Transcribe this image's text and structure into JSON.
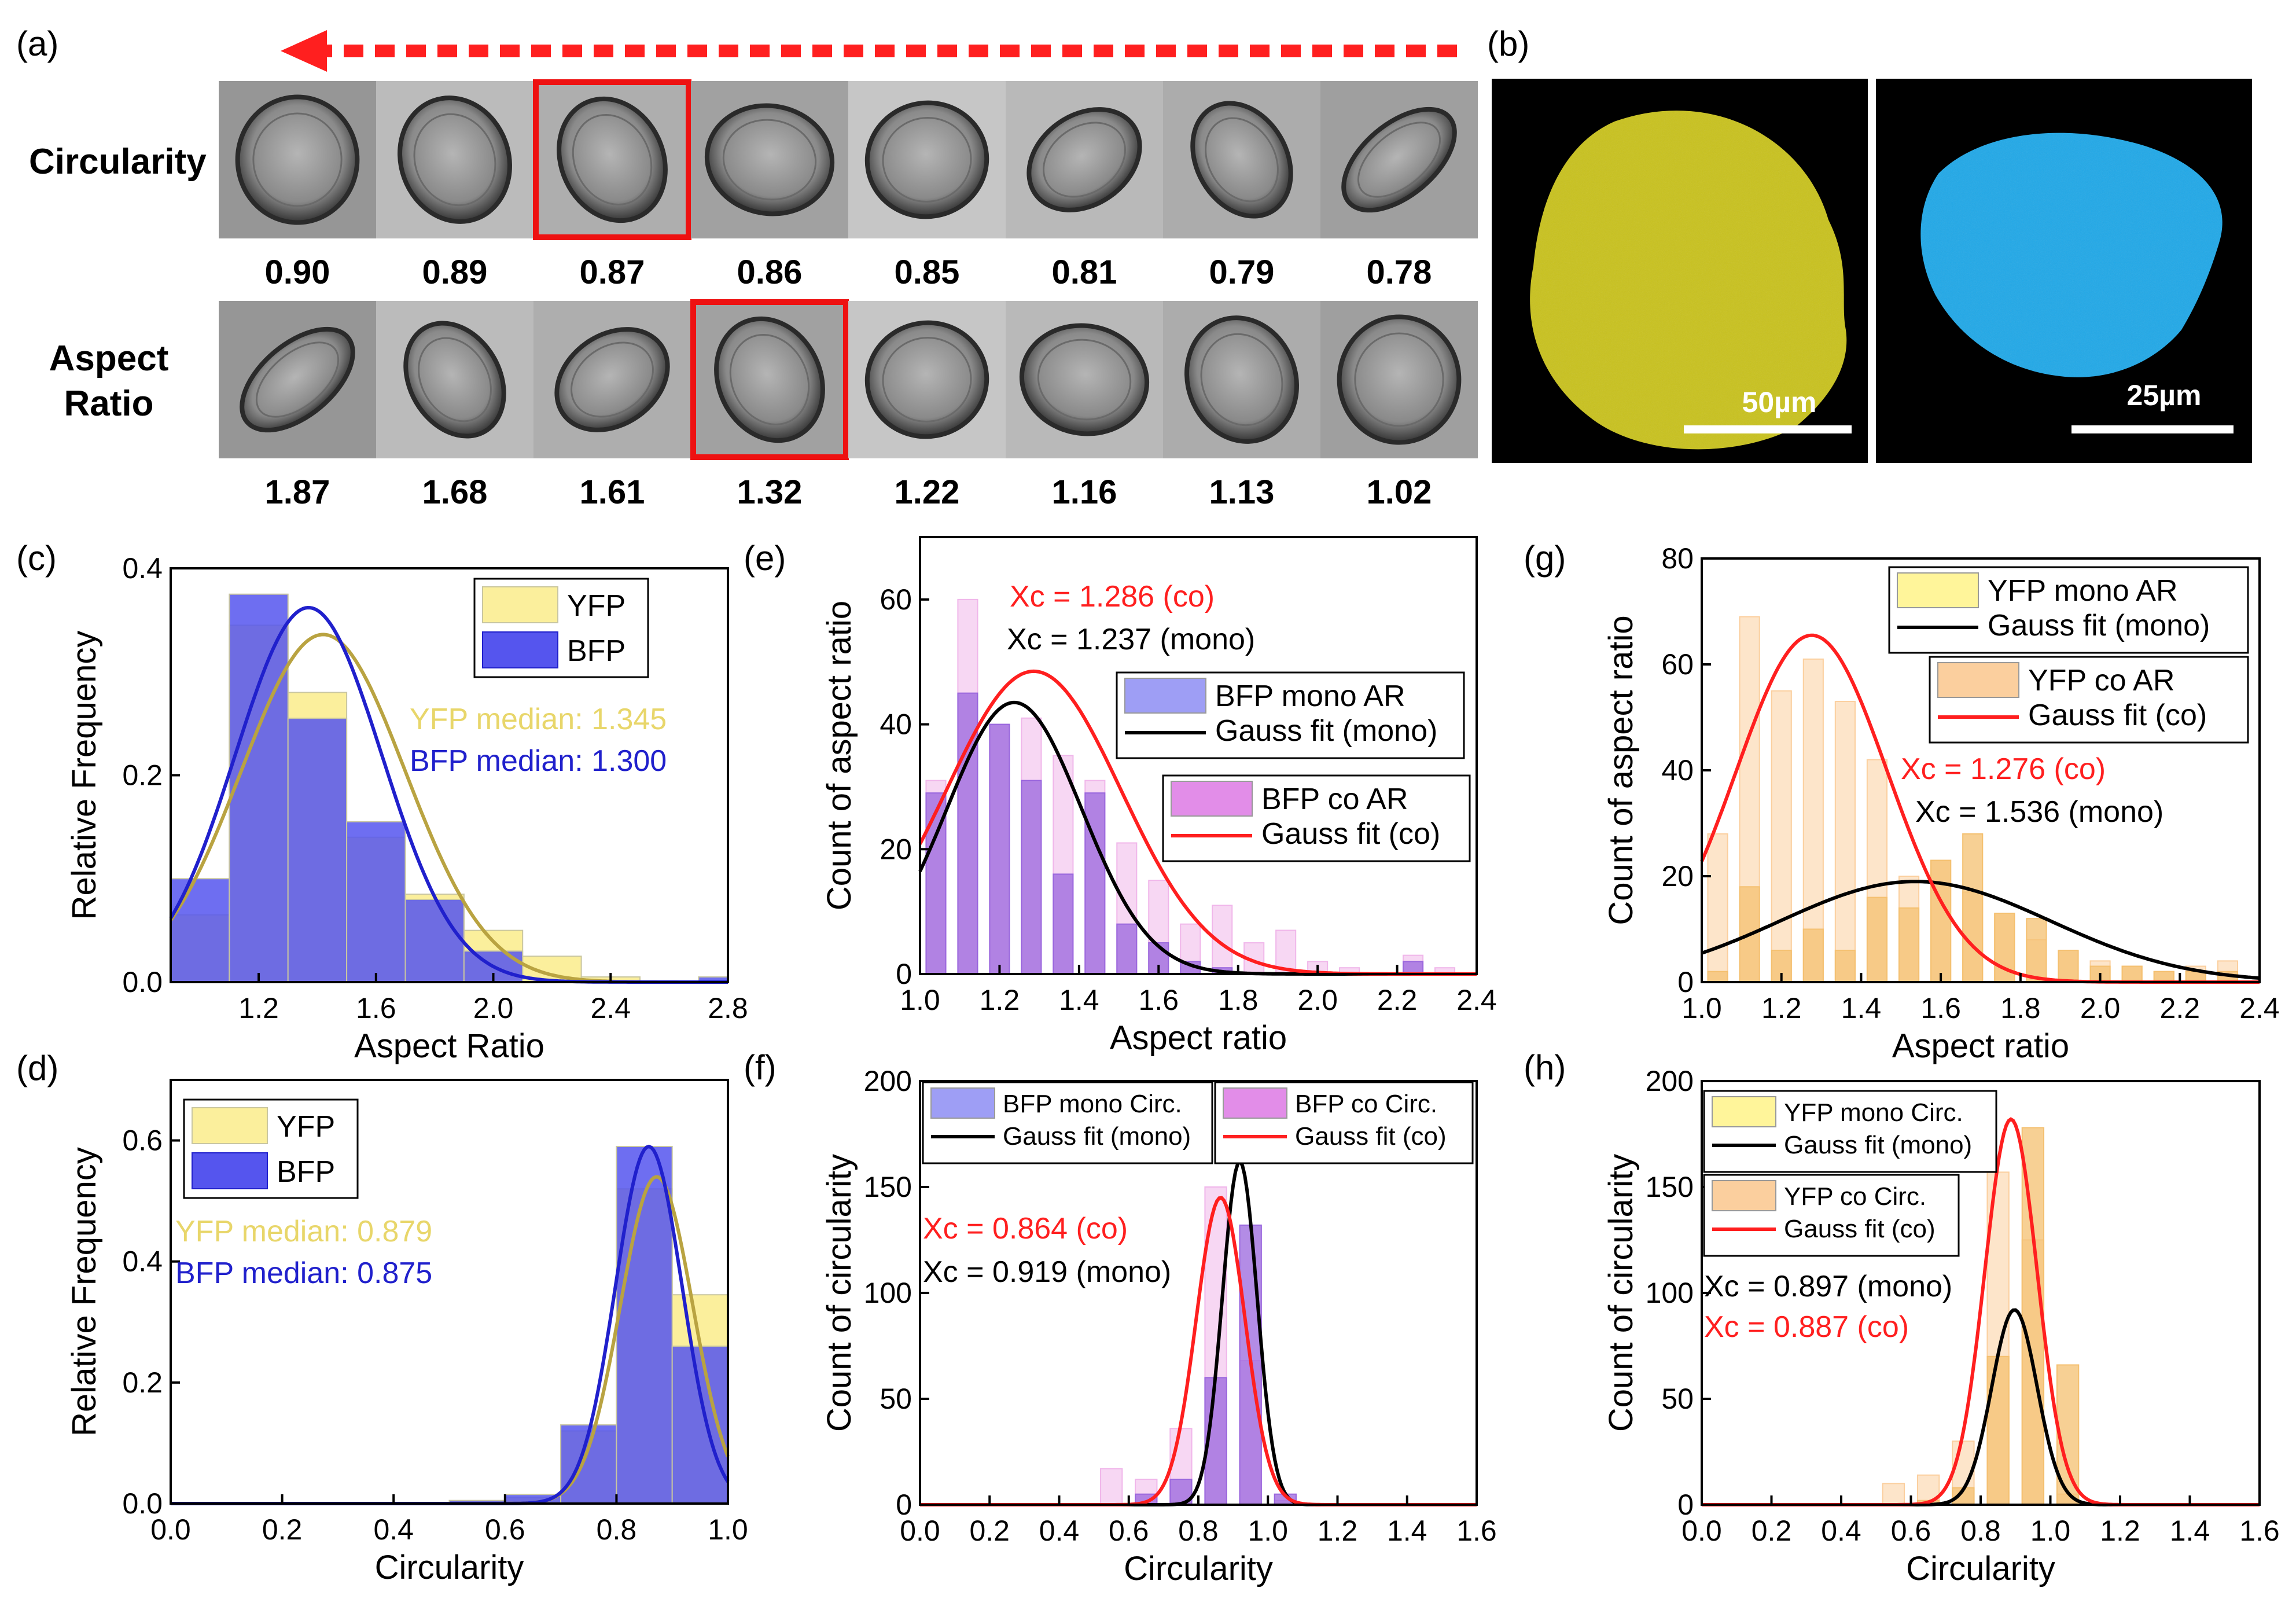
{
  "panel_a": {
    "label": "(a)",
    "row1_title": "Circularity",
    "row2_title_line1": "Aspect",
    "row2_title_line2": "Ratio",
    "row1_values": [
      "0.90",
      "0.89",
      "0.87",
      "0.86",
      "0.85",
      "0.81",
      "0.79",
      "0.78"
    ],
    "row2_values": [
      "1.87",
      "1.68",
      "1.61",
      "1.32",
      "1.22",
      "1.16",
      "1.13",
      "1.02"
    ],
    "row1_highlight_index": 2,
    "row2_highlight_index": 3
  },
  "panel_b": {
    "label": "(b)",
    "scale_left": "50µm",
    "scale_right": "25µm",
    "yellow_color": "#d4cc1e",
    "blue_color": "#1fa8e8"
  },
  "colors": {
    "yfp": "#fbef9c",
    "bfp": "#5555ee",
    "yfp_line": "#b9a341",
    "bfp_line": "#2020cc",
    "red": "#ff1f1f",
    "black": "#000000",
    "pink": "#f0b6ea",
    "purple": "#9966dd",
    "peach": "#fbcf9e",
    "orange": "#f4c070"
  },
  "chart_data": [
    {
      "id": "c",
      "label": "(c)",
      "type": "bar",
      "xlabel": "Aspect Ratio",
      "ylabel": "Relative Frequency",
      "xlim": [
        0.9,
        2.8
      ],
      "ylim": [
        0,
        0.4
      ],
      "xticks": [
        "1.2",
        "1.6",
        "2.0",
        "2.4",
        "2.8"
      ],
      "xtick_values": [
        1.2,
        1.6,
        2.0,
        2.4,
        2.8
      ],
      "yticks": [
        "0.0",
        "0.2",
        "0.4"
      ],
      "ytick_values": [
        0,
        0.2,
        0.4
      ],
      "bin_edges": [
        0.9,
        1.1,
        1.3,
        1.5,
        1.7,
        1.9,
        2.1,
        2.3,
        2.5,
        2.7,
        2.9
      ],
      "series": [
        {
          "name": "YFP",
          "values": [
            0.065,
            0.345,
            0.28,
            0.14,
            0.085,
            0.05,
            0.025,
            0.005,
            0.0,
            0.0
          ]
        },
        {
          "name": "BFP",
          "values": [
            0.1,
            0.375,
            0.255,
            0.155,
            0.08,
            0.03,
            0.0,
            0.0,
            0.0,
            0.005
          ]
        }
      ],
      "fits": [
        {
          "name": "YFP",
          "xc": 1.42,
          "w": 0.28,
          "a": 0.336
        },
        {
          "name": "BFP",
          "xc": 1.37,
          "w": 0.25,
          "a": 0.362
        }
      ],
      "legend": [
        "YFP",
        "BFP"
      ],
      "annotations": [
        "YFP median: 1.345",
        "BFP median: 1.300"
      ]
    },
    {
      "id": "d",
      "label": "(d)",
      "type": "bar",
      "xlabel": "Circularity",
      "ylabel": "Relative Frequency",
      "xlim": [
        0.0,
        1.0
      ],
      "ylim": [
        0,
        0.7
      ],
      "xticks": [
        "0.0",
        "0.2",
        "0.4",
        "0.6",
        "0.8",
        "1.0"
      ],
      "xtick_values": [
        0,
        0.2,
        0.4,
        0.6,
        0.8,
        1.0
      ],
      "yticks": [
        "0.0",
        "0.2",
        "0.4",
        "0.6"
      ],
      "ytick_values": [
        0,
        0.2,
        0.4,
        0.6
      ],
      "bin_edges": [
        0.5,
        0.6,
        0.7,
        0.8,
        0.9,
        1.0
      ],
      "series": [
        {
          "name": "YFP",
          "values": [
            0.005,
            0.01,
            0.12,
            0.52,
            0.345
          ]
        },
        {
          "name": "BFP",
          "values": [
            0.005,
            0.015,
            0.13,
            0.59,
            0.26
          ]
        }
      ],
      "fits": [
        {
          "name": "YFP",
          "xc": 0.872,
          "w": 0.065,
          "a": 0.54
        },
        {
          "name": "BFP",
          "xc": 0.858,
          "w": 0.06,
          "a": 0.59
        }
      ],
      "legend": [
        "YFP",
        "BFP"
      ],
      "annotations": [
        "YFP median: 0.879",
        "BFP median: 0.875"
      ]
    },
    {
      "id": "e",
      "label": "(e)",
      "type": "bar",
      "xlabel": "Aspect ratio",
      "ylabel": "Count of aspect ratio",
      "xlim": [
        1.0,
        2.4
      ],
      "ylim": [
        0,
        70
      ],
      "xticks": [
        "1.0",
        "1.2",
        "1.4",
        "1.6",
        "1.8",
        "2.0",
        "2.2",
        "2.4"
      ],
      "xtick_values": [
        1.0,
        1.2,
        1.4,
        1.6,
        1.8,
        2.0,
        2.2,
        2.4
      ],
      "yticks": [
        "0",
        "20",
        "40",
        "60"
      ],
      "ytick_values": [
        0,
        20,
        40,
        60
      ],
      "bin_centers": [
        1.04,
        1.12,
        1.2,
        1.28,
        1.36,
        1.44,
        1.52,
        1.6,
        1.68,
        1.76,
        1.84,
        1.92,
        2.0,
        2.08,
        2.16,
        2.24,
        2.32
      ],
      "series": [
        {
          "name": "BFP co AR",
          "values": [
            31,
            60,
            40,
            41,
            35,
            31,
            21,
            15,
            8,
            11,
            5,
            7,
            2,
            1,
            0,
            3,
            1
          ]
        },
        {
          "name": "BFP mono AR",
          "values": [
            29,
            45,
            40,
            31,
            16,
            29,
            8,
            5,
            2,
            1,
            0,
            0,
            0,
            0,
            0,
            2,
            0
          ]
        }
      ],
      "fits": [
        {
          "name": "Gauss fit (mono)",
          "xc": 1.237,
          "w": 0.17,
          "a": 43.5
        },
        {
          "name": "Gauss fit (co)",
          "xc": 1.286,
          "w": 0.22,
          "a": 48.5
        }
      ],
      "legend": [
        "BFP mono AR",
        "Gauss fit (mono)",
        "BFP co AR",
        "Gauss fit (co)"
      ],
      "annotations": [
        "Xc = 1.286 (co)",
        "Xc = 1.237 (mono)"
      ]
    },
    {
      "id": "f",
      "label": "(f)",
      "type": "bar",
      "xlabel": "Circularity",
      "ylabel": "Count of circularity",
      "xlim": [
        0.0,
        1.6
      ],
      "ylim": [
        0,
        200
      ],
      "xticks": [
        "0.0",
        "0.2",
        "0.4",
        "0.6",
        "0.8",
        "1.0",
        "1.2",
        "1.4",
        "1.6"
      ],
      "xtick_values": [
        0,
        0.2,
        0.4,
        0.6,
        0.8,
        1.0,
        1.2,
        1.4,
        1.6
      ],
      "yticks": [
        "0",
        "50",
        "100",
        "150",
        "200"
      ],
      "ytick_values": [
        0,
        50,
        100,
        150,
        200
      ],
      "bin_centers": [
        0.55,
        0.65,
        0.75,
        0.85,
        0.95,
        1.05
      ],
      "series": [
        {
          "name": "BFP co Circ.",
          "values": [
            17,
            12,
            36,
            150,
            68,
            2
          ]
        },
        {
          "name": "BFP mono Circ.",
          "values": [
            0,
            5,
            12,
            60,
            132,
            5
          ]
        }
      ],
      "fits": [
        {
          "name": "Gauss fit (mono)",
          "xc": 0.919,
          "w": 0.05,
          "a": 162
        },
        {
          "name": "Gauss fit (co)",
          "xc": 0.864,
          "w": 0.07,
          "a": 145
        }
      ],
      "legend": [
        "BFP mono Circ.",
        "Gauss fit (mono)",
        "BFP co Circ.",
        "Gauss fit (co)"
      ],
      "annotations": [
        "Xc = 0.864 (co)",
        "Xc = 0.919 (mono)"
      ]
    },
    {
      "id": "g",
      "label": "(g)",
      "type": "bar",
      "xlabel": "Aspect ratio",
      "ylabel": "Count of aspect ratio",
      "xlim": [
        1.0,
        2.4
      ],
      "ylim": [
        0,
        80
      ],
      "xticks": [
        "1.0",
        "1.2",
        "1.4",
        "1.6",
        "1.8",
        "2.0",
        "2.2",
        "2.4"
      ],
      "xtick_values": [
        1.0,
        1.2,
        1.4,
        1.6,
        1.8,
        2.0,
        2.2,
        2.4
      ],
      "yticks": [
        "0",
        "20",
        "40",
        "60",
        "80"
      ],
      "ytick_values": [
        0,
        20,
        40,
        60,
        80
      ],
      "bin_centers": [
        1.04,
        1.12,
        1.2,
        1.28,
        1.36,
        1.44,
        1.52,
        1.6,
        1.68,
        1.76,
        1.84,
        1.92,
        2.0,
        2.08,
        2.16,
        2.24,
        2.32
      ],
      "series": [
        {
          "name": "YFP co AR",
          "values": [
            28,
            69,
            55,
            61,
            53,
            42,
            20,
            23,
            17,
            13,
            8,
            6,
            4,
            3,
            2,
            3,
            4
          ]
        },
        {
          "name": "YFP mono AR",
          "values": [
            2,
            18,
            6,
            10,
            6,
            16,
            14,
            23,
            28,
            13,
            12,
            6,
            3,
            3,
            2,
            2,
            2
          ]
        }
      ],
      "fits": [
        {
          "name": "Gauss fit (mono)",
          "xc": 1.536,
          "w": 0.34,
          "a": 19
        },
        {
          "name": "Gauss fit (co)",
          "xc": 1.276,
          "w": 0.19,
          "a": 65.5
        }
      ],
      "legend": [
        "YFP mono AR",
        "Gauss fit (mono)",
        "YFP co AR",
        "Gauss fit (co)"
      ],
      "annotations": [
        "Xc = 1.276 (co)",
        "Xc = 1.536 (mono)"
      ]
    },
    {
      "id": "h",
      "label": "(h)",
      "type": "bar",
      "xlabel": "Circularity",
      "ylabel": "Count of circularity",
      "xlim": [
        0.0,
        1.6
      ],
      "ylim": [
        0,
        200
      ],
      "xticks": [
        "0.0",
        "0.2",
        "0.4",
        "0.6",
        "0.8",
        "1.0",
        "1.2",
        "1.4",
        "1.6"
      ],
      "xtick_values": [
        0,
        0.2,
        0.4,
        0.6,
        0.8,
        1.0,
        1.2,
        1.4,
        1.6
      ],
      "yticks": [
        "0",
        "50",
        "100",
        "150",
        "200"
      ],
      "ytick_values": [
        0,
        50,
        100,
        150,
        200
      ],
      "bin_centers": [
        0.55,
        0.65,
        0.75,
        0.85,
        0.95,
        1.05
      ],
      "series": [
        {
          "name": "YFP co Circ.",
          "values": [
            10,
            14,
            30,
            157,
            125,
            5
          ]
        },
        {
          "name": "YFP mono Circ.",
          "values": [
            0,
            2,
            8,
            70,
            178,
            66
          ]
        }
      ],
      "fits": [
        {
          "name": "Gauss fit (mono)",
          "xc": 0.897,
          "w": 0.065,
          "a": 92
        },
        {
          "name": "Gauss fit (co)",
          "xc": 0.887,
          "w": 0.075,
          "a": 182
        }
      ],
      "legend": [
        "YFP mono Circ.",
        "Gauss fit (mono)",
        "YFP co Circ.",
        "Gauss fit (co)"
      ],
      "annotations": [
        "Xc = 0.897 (mono)",
        "Xc = 0.887 (co)"
      ]
    }
  ]
}
